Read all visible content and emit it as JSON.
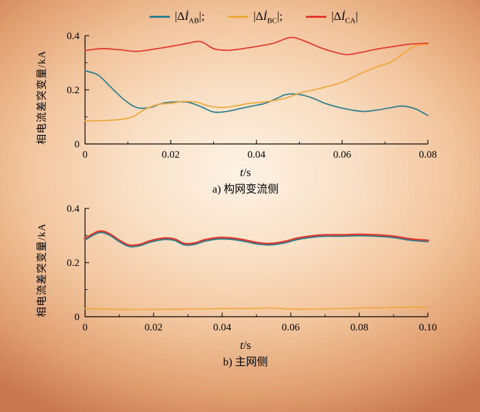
{
  "page": {
    "bg_center": "#fdf2e5",
    "bg_edge": "#c8794f"
  },
  "legend": {
    "items": [
      {
        "prefix": "|Δ",
        "symbol": "İ",
        "sub": "AB",
        "suffix": "|;",
        "color": "#2f7e8f"
      },
      {
        "prefix": "|Δ",
        "symbol": "İ",
        "sub": "BC",
        "suffix": "|;",
        "color": "#f0a73a"
      },
      {
        "prefix": "|Δ",
        "symbol": "İ",
        "sub": "CA",
        "suffix": "|",
        "color": "#e2372b"
      }
    ]
  },
  "chart_data": [
    {
      "type": "line",
      "caption": "a) 构网变流侧",
      "ylabel": "相电流差突变量/kA",
      "xlabel": "t/s",
      "xlabel_var": "t",
      "xlabel_unit": "/s",
      "xlim": [
        0,
        0.08
      ],
      "ylim": [
        0,
        0.4
      ],
      "xticks": [
        0,
        0.02,
        0.04,
        0.06,
        0.08
      ],
      "xtick_labels": [
        "0",
        "0.02",
        "0.04",
        "0.06",
        "0.08"
      ],
      "yticks": [
        0,
        0.2,
        0.4
      ],
      "ytick_labels": [
        "0",
        "0.2",
        "0.4"
      ],
      "legend_position": "top",
      "grid": false,
      "series": [
        {
          "name": "|ΔI_AB|",
          "color": "#2f7e8f",
          "width": 1.8,
          "x": [
            0,
            0.003,
            0.006,
            0.009,
            0.012,
            0.015,
            0.018,
            0.021,
            0.024,
            0.027,
            0.03,
            0.033,
            0.036,
            0.039,
            0.042,
            0.045,
            0.047,
            0.05,
            0.053,
            0.056,
            0.059,
            0.062,
            0.065,
            0.068,
            0.071,
            0.074,
            0.077,
            0.08
          ],
          "y": [
            0.27,
            0.255,
            0.21,
            0.165,
            0.135,
            0.134,
            0.15,
            0.155,
            0.154,
            0.138,
            0.118,
            0.12,
            0.13,
            0.14,
            0.15,
            0.17,
            0.183,
            0.183,
            0.17,
            0.15,
            0.136,
            0.126,
            0.12,
            0.125,
            0.133,
            0.14,
            0.13,
            0.105
          ]
        },
        {
          "name": "|ΔI_BC|",
          "color": "#f0a73a",
          "width": 1.8,
          "x": [
            0,
            0.004,
            0.008,
            0.011,
            0.014,
            0.017,
            0.02,
            0.023,
            0.026,
            0.029,
            0.032,
            0.035,
            0.038,
            0.041,
            0.044,
            0.047,
            0.05,
            0.053,
            0.056,
            0.06,
            0.064,
            0.068,
            0.071,
            0.074,
            0.077,
            0.08
          ],
          "y": [
            0.085,
            0.086,
            0.09,
            0.1,
            0.128,
            0.146,
            0.15,
            0.157,
            0.154,
            0.14,
            0.135,
            0.14,
            0.149,
            0.154,
            0.16,
            0.17,
            0.188,
            0.198,
            0.21,
            0.228,
            0.258,
            0.284,
            0.3,
            0.33,
            0.362,
            0.368
          ]
        },
        {
          "name": "|ΔI_CA|",
          "color": "#e2372b",
          "width": 1.8,
          "x": [
            0,
            0.004,
            0.008,
            0.012,
            0.016,
            0.02,
            0.024,
            0.027,
            0.03,
            0.033,
            0.036,
            0.04,
            0.044,
            0.047,
            0.049,
            0.052,
            0.055,
            0.058,
            0.061,
            0.064,
            0.068,
            0.072,
            0.076,
            0.08
          ],
          "y": [
            0.345,
            0.352,
            0.348,
            0.342,
            0.35,
            0.36,
            0.372,
            0.378,
            0.352,
            0.346,
            0.35,
            0.36,
            0.372,
            0.39,
            0.392,
            0.375,
            0.355,
            0.34,
            0.33,
            0.337,
            0.35,
            0.36,
            0.369,
            0.372
          ]
        }
      ]
    },
    {
      "type": "line",
      "caption": "b) 主网侧",
      "ylabel": "相电流差突变量/kA",
      "xlabel": "t/s",
      "xlabel_var": "t",
      "xlabel_unit": "/s",
      "xlim": [
        0,
        0.1
      ],
      "ylim": [
        0,
        0.4
      ],
      "xticks": [
        0,
        0.02,
        0.04,
        0.06,
        0.08,
        0.1
      ],
      "xtick_labels": [
        "0",
        "0.02",
        "0.04",
        "0.06",
        "0.08",
        "0.10"
      ],
      "yticks": [
        0,
        0.2,
        0.4
      ],
      "ytick_labels": [
        "0",
        "0.2",
        "0.4"
      ],
      "grid": false,
      "series": [
        {
          "name": "|ΔI_CA|",
          "color": "#e2372b",
          "width": 3.4,
          "x": [
            0,
            0.004,
            0.007,
            0.01,
            0.013,
            0.016,
            0.019,
            0.023,
            0.026,
            0.029,
            0.032,
            0.035,
            0.039,
            0.043,
            0.047,
            0.05,
            0.054,
            0.058,
            0.062,
            0.066,
            0.07,
            0.075,
            0.08,
            0.085,
            0.09,
            0.095,
            0.1
          ],
          "y": [
            0.287,
            0.314,
            0.306,
            0.281,
            0.263,
            0.266,
            0.279,
            0.289,
            0.286,
            0.269,
            0.271,
            0.283,
            0.291,
            0.289,
            0.281,
            0.273,
            0.269,
            0.276,
            0.289,
            0.297,
            0.301,
            0.301,
            0.303,
            0.301,
            0.296,
            0.286,
            0.281
          ]
        },
        {
          "name": "|ΔI_AB|",
          "color": "#2f7e8f",
          "width": 1.9,
          "x": [
            0,
            0.004,
            0.007,
            0.01,
            0.013,
            0.016,
            0.019,
            0.023,
            0.026,
            0.029,
            0.032,
            0.035,
            0.039,
            0.043,
            0.047,
            0.05,
            0.054,
            0.058,
            0.062,
            0.066,
            0.07,
            0.075,
            0.08,
            0.085,
            0.09,
            0.095,
            0.1
          ],
          "y": [
            0.283,
            0.31,
            0.302,
            0.277,
            0.259,
            0.262,
            0.275,
            0.285,
            0.282,
            0.265,
            0.267,
            0.279,
            0.287,
            0.285,
            0.277,
            0.269,
            0.265,
            0.272,
            0.285,
            0.293,
            0.297,
            0.297,
            0.299,
            0.297,
            0.292,
            0.282,
            0.277
          ]
        },
        {
          "name": "|ΔI_BC|",
          "color": "#f0a73a",
          "width": 1.7,
          "x": [
            0,
            0.01,
            0.02,
            0.03,
            0.04,
            0.05,
            0.055,
            0.06,
            0.07,
            0.08,
            0.09,
            0.1
          ],
          "y": [
            0.03,
            0.027,
            0.027,
            0.028,
            0.03,
            0.031,
            0.032,
            0.028,
            0.029,
            0.032,
            0.034,
            0.036
          ]
        }
      ]
    }
  ]
}
